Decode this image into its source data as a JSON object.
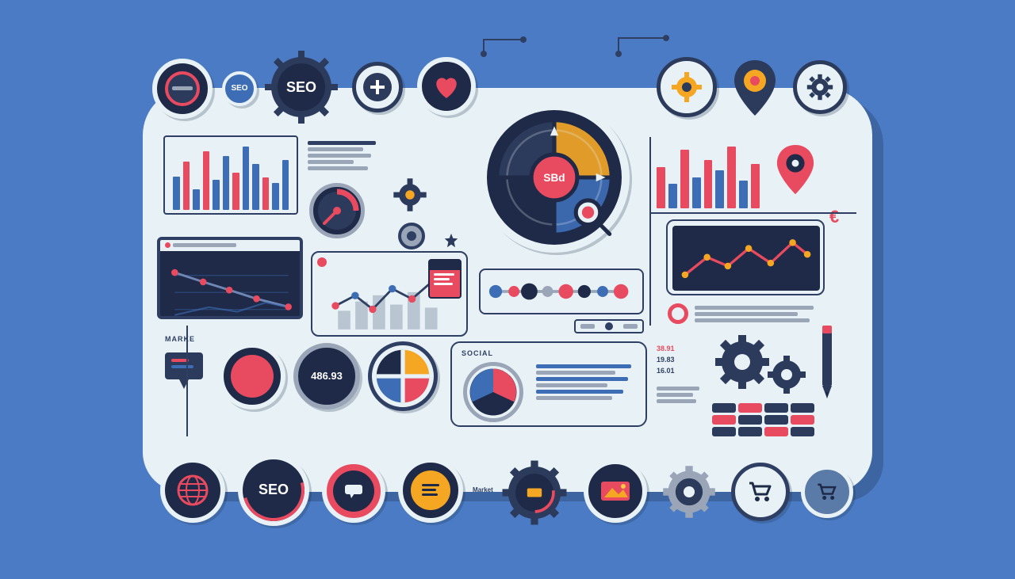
{
  "colors": {
    "bg": "#4a7bc4",
    "panel": "#e8f2f6",
    "navy": "#1e2a47",
    "navy2": "#2c3a5c",
    "red": "#e84a5f",
    "blue": "#3d6db5",
    "orange": "#f5a623",
    "yellow": "#f8c946",
    "white": "#ffffff",
    "grey": "#9aa6b8",
    "line": "#2f3f63"
  },
  "top_badges": [
    {
      "type": "circle",
      "label": "",
      "color": "#1e2a47",
      "accent": "#e84a5f"
    },
    {
      "type": "small",
      "label": "SEO",
      "color": "#3d6db5"
    },
    {
      "type": "gear",
      "label": "SEO",
      "color": "#2c3a5c"
    },
    {
      "type": "plus",
      "label": "",
      "color": "#2c3a5c",
      "accent": "#ffffff"
    },
    {
      "type": "heart",
      "label": "",
      "color": "#1e2a47",
      "accent": "#e84a5f"
    },
    {
      "type": "dial",
      "label": "SBd",
      "color": "#1e2a47",
      "accent": "#e84a5f"
    },
    {
      "type": "geary",
      "label": "",
      "color": "#2c3a5c",
      "accent": "#f5a623"
    },
    {
      "type": "pin",
      "label": "",
      "color": "#2c3a5c",
      "accent": "#f5a623"
    },
    {
      "type": "gear2",
      "label": "",
      "color": "#2c3a5c"
    }
  ],
  "bar_chart_left": {
    "heights": [
      50,
      72,
      30,
      88,
      45,
      80,
      55,
      95,
      68,
      48,
      40,
      75
    ],
    "colors": [
      "#3d6db5",
      "#e84a5f",
      "#3d6db5",
      "#e84a5f",
      "#3d6db5",
      "#3d6db5",
      "#e84a5f",
      "#3d6db5",
      "#3d6db5",
      "#e84a5f",
      "#3d6db5",
      "#3d6db5"
    ]
  },
  "bar_chart_right": {
    "heights": [
      60,
      35,
      85,
      45,
      70,
      55,
      90,
      40,
      65
    ],
    "colors": [
      "#e84a5f",
      "#3d6db5",
      "#e84a5f",
      "#3d6db5",
      "#e84a5f",
      "#3d6db5",
      "#e84a5f",
      "#3d6db5",
      "#e84a5f"
    ]
  },
  "monitor_chart": {
    "points": [
      [
        0,
        70
      ],
      [
        25,
        55
      ],
      [
        48,
        42
      ],
      [
        72,
        28
      ],
      [
        100,
        15
      ]
    ],
    "dot_color": "#e84a5f",
    "line_color": "#6f87b5",
    "bg": "#1e2a47"
  },
  "combo_chart": {
    "line_points": [
      [
        0,
        60
      ],
      [
        18,
        45
      ],
      [
        34,
        65
      ],
      [
        52,
        35
      ],
      [
        70,
        50
      ],
      [
        88,
        25
      ],
      [
        100,
        40
      ]
    ],
    "dot_colors": [
      "#e84a5f",
      "#3d6db5",
      "#e84a5f",
      "#3d6db5",
      "#e84a5f",
      "#3d6db5",
      "#e84a5f"
    ],
    "bars": [
      30,
      45,
      55,
      40,
      60,
      35
    ],
    "bar_color": "#9aa6b8"
  },
  "node_strip": {
    "nodes": [
      {
        "x": 8,
        "r": 7,
        "c": "#3d6db5"
      },
      {
        "x": 20,
        "r": 6,
        "c": "#e84a5f"
      },
      {
        "x": 30,
        "r": 9,
        "c": "#1e2a47"
      },
      {
        "x": 42,
        "r": 6,
        "c": "#9aa6b8"
      },
      {
        "x": 54,
        "r": 8,
        "c": "#e84a5f"
      },
      {
        "x": 66,
        "r": 7,
        "c": "#1e2a47"
      },
      {
        "x": 78,
        "r": 6,
        "c": "#3d6db5"
      },
      {
        "x": 90,
        "r": 8,
        "c": "#e84a5f"
      }
    ]
  },
  "line_rt": {
    "points": [
      [
        0,
        75
      ],
      [
        18,
        45
      ],
      [
        35,
        60
      ],
      [
        52,
        30
      ],
      [
        70,
        55
      ],
      [
        88,
        20
      ],
      [
        100,
        40
      ]
    ],
    "dot_color": "#f5a623",
    "line_color": "#e84a5f",
    "bg": "#1e2a47"
  },
  "labels": {
    "marke": "MARKE",
    "social": "SOCIAL",
    "counter": "486.93",
    "stat1": "38.91",
    "stat2": "19.83",
    "stat3": "16.01"
  },
  "pie1": {
    "slices": [
      {
        "c": "#f5a623",
        "p": 25
      },
      {
        "c": "#e84a5f",
        "p": 25
      },
      {
        "c": "#3d6db5",
        "p": 25
      },
      {
        "c": "#1e2a47",
        "p": 25
      }
    ]
  },
  "pie2": {
    "slices": [
      {
        "c": "#e84a5f",
        "p": 35
      },
      {
        "c": "#1e2a47",
        "p": 40
      },
      {
        "c": "#3d6db5",
        "p": 25
      }
    ]
  },
  "bottom_badges": [
    {
      "icon": "globe",
      "c": "#1e2a47",
      "a": "#e84a5f"
    },
    {
      "icon": "seo",
      "label": "SEO",
      "c": "#1e2a47",
      "a": "#e84a5f"
    },
    {
      "icon": "chat",
      "c": "#e84a5f",
      "a": "#1e2a47"
    },
    {
      "icon": "list",
      "c": "#1e2a47",
      "a": "#f5a623"
    },
    {
      "icon": "market",
      "c": "#2c3a5c",
      "a": "#e84a5f"
    },
    {
      "icon": "photo",
      "c": "#1e2a47",
      "a": "#e84a5f"
    },
    {
      "icon": "gear",
      "c": "#2c3a5c",
      "a": "#9aa6b8"
    },
    {
      "icon": "cart",
      "c": "#e8f2f6",
      "a": "#1e2a47"
    },
    {
      "icon": "cart2",
      "c": "#5a7aa8",
      "a": "#1e2a47"
    }
  ]
}
